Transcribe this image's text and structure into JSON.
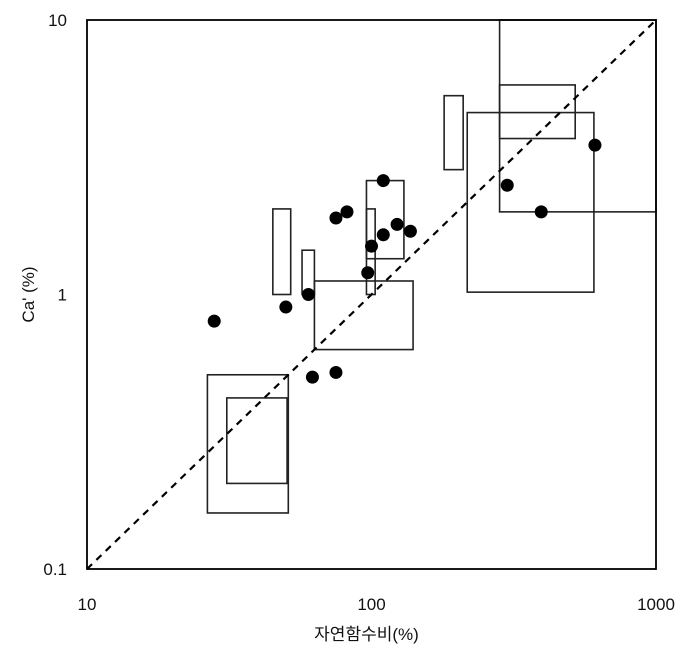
{
  "chart_data": {
    "type": "scatter",
    "title": "",
    "xlabel": "자연함수비(%)",
    "ylabel": "Ca' (%)",
    "x_scale": "log",
    "y_scale": "log",
    "xlim": [
      10,
      1000
    ],
    "ylim": [
      0.1,
      10
    ],
    "x_ticks": [
      {
        "value": 10,
        "label": "10"
      },
      {
        "value": 100,
        "label": "100"
      },
      {
        "value": 1000,
        "label": "1000"
      }
    ],
    "y_ticks": [
      {
        "value": 0.1,
        "label": "0.1"
      },
      {
        "value": 1,
        "label": "1"
      },
      {
        "value": 10,
        "label": "10"
      }
    ],
    "grid": false,
    "legend": "none",
    "reference_line": {
      "style": "dashed",
      "relation": "y = x / 100",
      "from": [
        10,
        0.1
      ],
      "to": [
        1000,
        10
      ]
    },
    "points": [
      {
        "x": 28,
        "y": 0.8
      },
      {
        "x": 50,
        "y": 0.9
      },
      {
        "x": 60,
        "y": 1.0
      },
      {
        "x": 62,
        "y": 0.5
      },
      {
        "x": 75,
        "y": 0.52
      },
      {
        "x": 75,
        "y": 1.9
      },
      {
        "x": 82,
        "y": 2.0
      },
      {
        "x": 97,
        "y": 1.2
      },
      {
        "x": 100,
        "y": 1.5
      },
      {
        "x": 110,
        "y": 2.6
      },
      {
        "x": 110,
        "y": 1.65
      },
      {
        "x": 123,
        "y": 1.8
      },
      {
        "x": 137,
        "y": 1.7
      },
      {
        "x": 300,
        "y": 2.5
      },
      {
        "x": 395,
        "y": 2.0
      },
      {
        "x": 610,
        "y": 3.5
      }
    ],
    "ranges": [
      {
        "x": [
          26.5,
          51
        ],
        "y": [
          0.16,
          0.51
        ]
      },
      {
        "x": [
          31,
          50.5
        ],
        "y": [
          0.205,
          0.42
        ]
      },
      {
        "x": [
          45,
          52
        ],
        "y": [
          1.0,
          2.05
        ]
      },
      {
        "x": [
          57,
          63
        ],
        "y": [
          1.0,
          1.45
        ]
      },
      {
        "x": [
          63,
          140
        ],
        "y": [
          0.63,
          1.12
        ]
      },
      {
        "x": [
          96,
          130
        ],
        "y": [
          1.35,
          2.6
        ]
      },
      {
        "x": [
          96,
          103
        ],
        "y": [
          1.0,
          2.05
        ]
      },
      {
        "x": [
          180,
          210
        ],
        "y": [
          2.85,
          5.3
        ]
      },
      {
        "x": [
          217,
          605
        ],
        "y": [
          1.02,
          4.6
        ]
      },
      {
        "x": [
          282,
          520
        ],
        "y": [
          3.7,
          5.8
        ]
      },
      {
        "x": [
          282,
          1000
        ],
        "y": [
          2.0,
          10
        ]
      }
    ]
  }
}
